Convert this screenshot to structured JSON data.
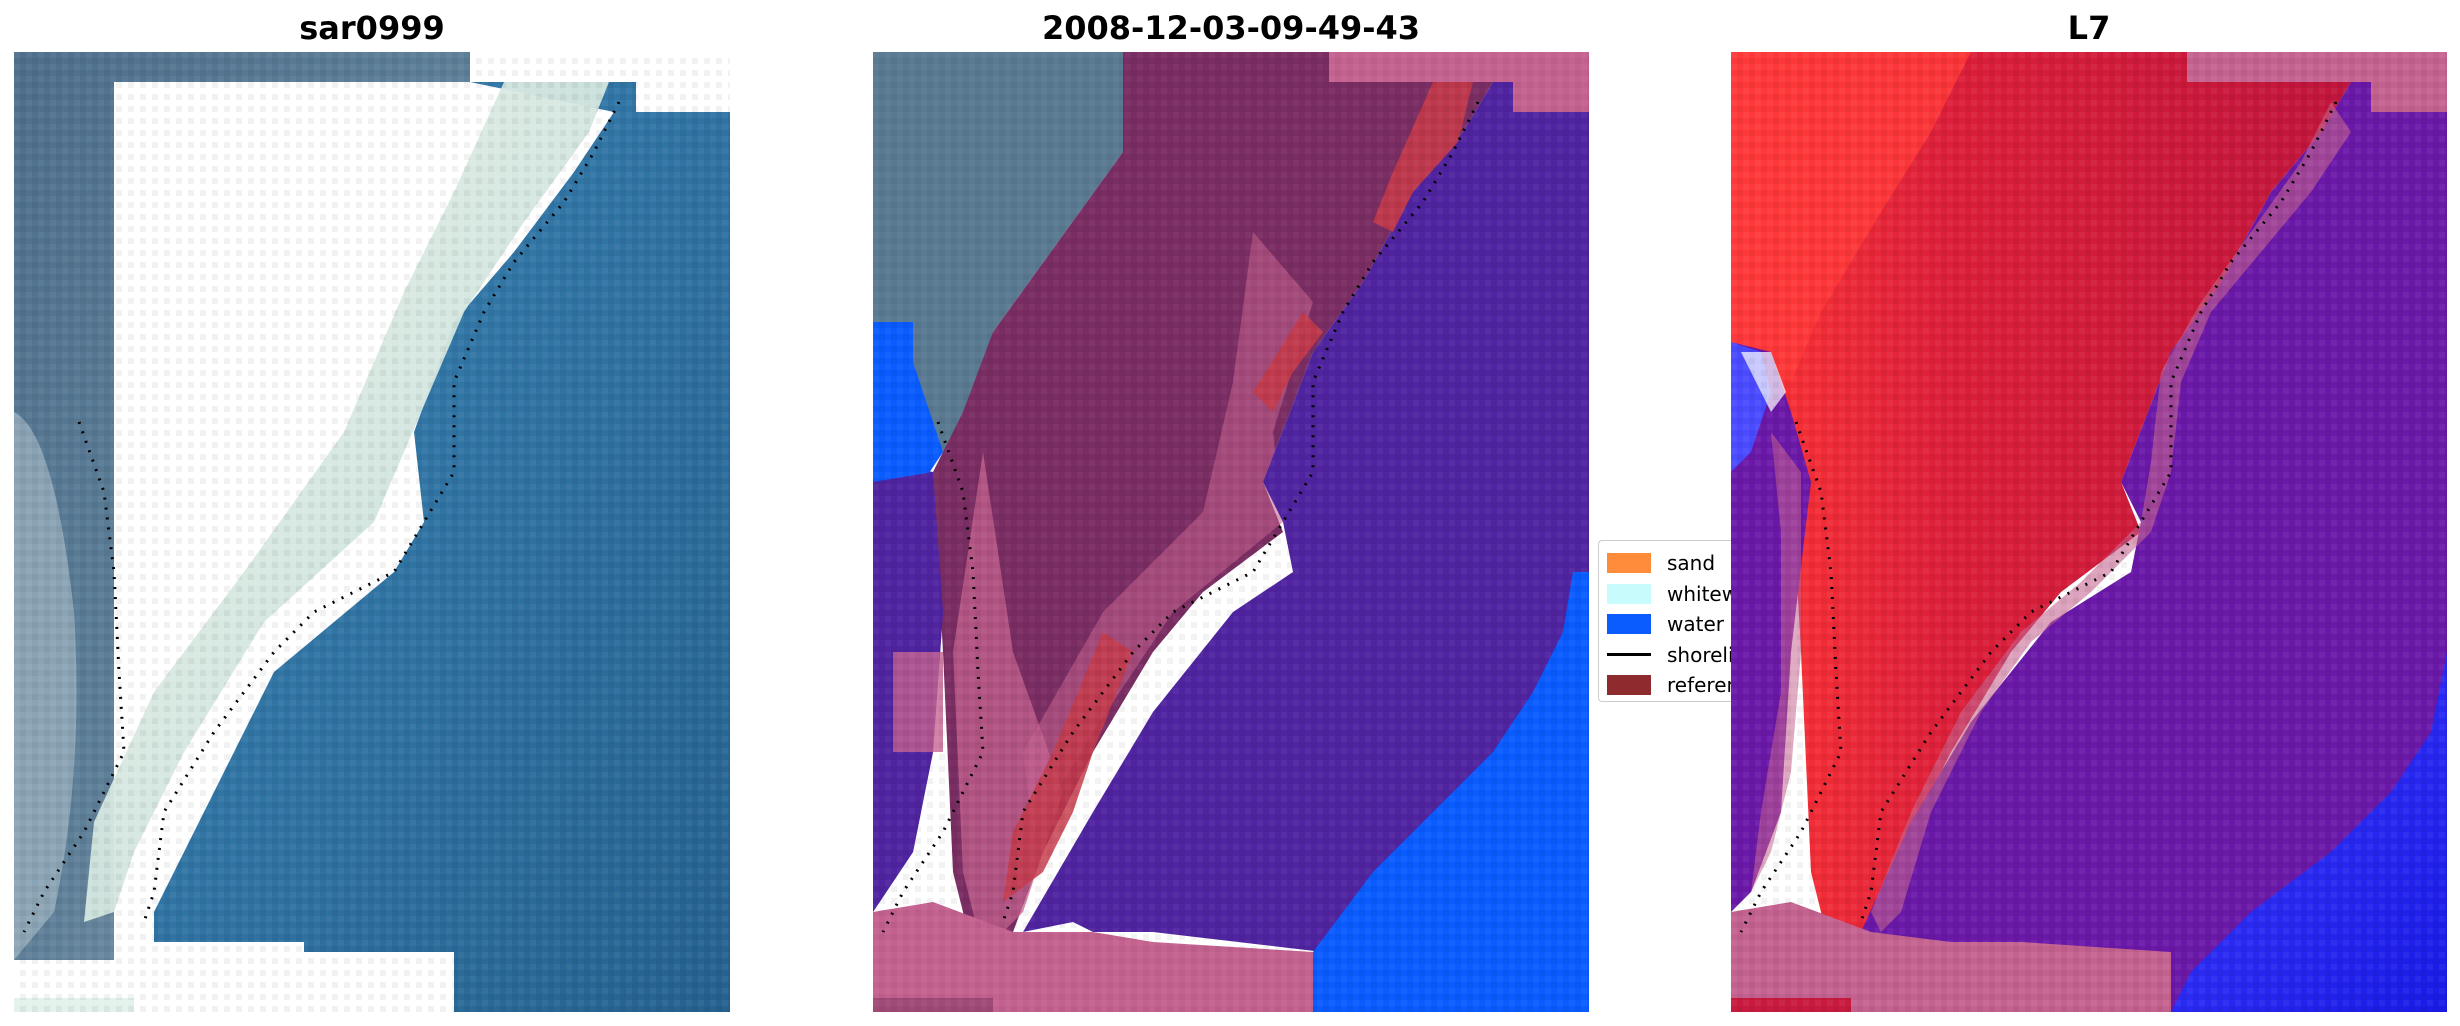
{
  "panels": [
    {
      "title": "sar0999"
    },
    {
      "title": "2008-12-03-09-49-43"
    },
    {
      "title": "L7"
    }
  ],
  "legend": {
    "items": [
      {
        "label": "sand",
        "color": "#ff8c3a"
      },
      {
        "label": "whitewater",
        "color": "#c8fbfb"
      },
      {
        "label": "water",
        "color": "#0a5cff"
      },
      {
        "label": "shoreline",
        "color": "#000000"
      },
      {
        "label": "reference",
        "color": "#8e2b2e"
      }
    ]
  },
  "colors": {
    "land_rgb": "#5c7c95",
    "sea_rgb": "#2f6e9e",
    "foam": "#e6f2e8",
    "class_land": "#7a2d62",
    "class_sand_overlay": "#c4628f",
    "class_water": "#5024a0",
    "class_open_water": "#0a5cff",
    "class_reference": "#c43a4a",
    "mndwi_land": "#c81a3e",
    "mndwi_bright": "#ff3030",
    "mndwi_water": "#6a18a8",
    "mndwi_deep": "#2a2aff",
    "mndwi_band": "#c4628f"
  }
}
